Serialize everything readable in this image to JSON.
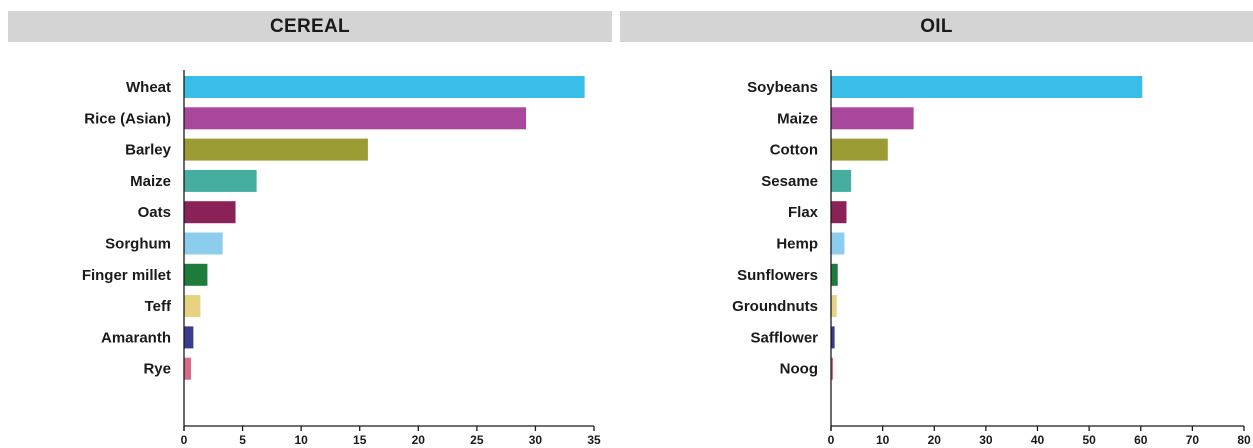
{
  "chart_data": [
    {
      "type": "bar",
      "orientation": "horizontal",
      "title": "CEREAL",
      "categories": [
        "Wheat",
        "Rice (Asian)",
        "Barley",
        "Maize",
        "Oats",
        "Sorghum",
        "Finger millet",
        "Teff",
        "Amaranth",
        "Rye"
      ],
      "values": [
        34.2,
        29.2,
        15.7,
        6.2,
        4.4,
        3.3,
        2.0,
        1.4,
        0.8,
        0.6
      ],
      "xlim": [
        0,
        35
      ],
      "xticks": [
        "0",
        "5",
        "10",
        "15",
        "20",
        "25",
        "30",
        "35"
      ],
      "xlabel": "",
      "ylabel": "",
      "grid": false,
      "colors": [
        "#3bbdea",
        "#a8479b",
        "#9c9c35",
        "#45aea0",
        "#8a2257",
        "#8ccdee",
        "#1d7c3c",
        "#e5d283",
        "#383c8f",
        "#d86a86"
      ]
    },
    {
      "type": "bar",
      "orientation": "horizontal",
      "title": "OIL",
      "categories": [
        "Soybeans",
        "Maize",
        "Cotton",
        "Sesame",
        "Flax",
        "Hemp",
        "Sunflowers",
        "Groundnuts",
        "Safflower",
        "Noog"
      ],
      "values": [
        60.3,
        16.0,
        11.0,
        3.9,
        3.0,
        2.6,
        1.3,
        1.1,
        0.7,
        0.4
      ],
      "xlim": [
        0,
        80
      ],
      "xticks": [
        "0",
        "10",
        "20",
        "30",
        "40",
        "50",
        "60",
        "70",
        "80"
      ],
      "xlabel": "",
      "ylabel": "",
      "grid": false,
      "colors": [
        "#3bbdea",
        "#a8479b",
        "#9c9c35",
        "#45aea0",
        "#8a2257",
        "#8ccdee",
        "#1d7c3c",
        "#e5d283",
        "#383c8f",
        "#d86a86"
      ]
    }
  ]
}
